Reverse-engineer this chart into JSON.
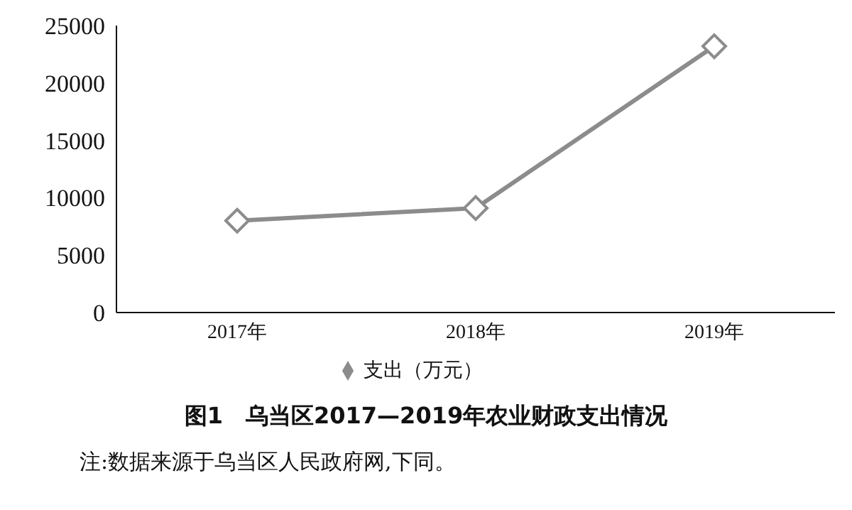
{
  "chart_data": {
    "type": "line",
    "title": "图1　乌当区2017—2019年农业财政支出情况",
    "categories": [
      "2017年",
      "2018年",
      "2019年"
    ],
    "series": [
      {
        "name": "支出（万元）",
        "color": "#8c8c8c",
        "values": [
          8000,
          9100,
          23200
        ]
      }
    ],
    "ylim": [
      0,
      25000
    ],
    "yticks": [
      0,
      5000,
      10000,
      15000,
      20000,
      25000
    ],
    "grid": false,
    "legend": "bottom",
    "marker": "diamond",
    "line_style": "solid",
    "annotations": [
      "注:数据来源于乌当区人民政府网,下同。"
    ]
  }
}
